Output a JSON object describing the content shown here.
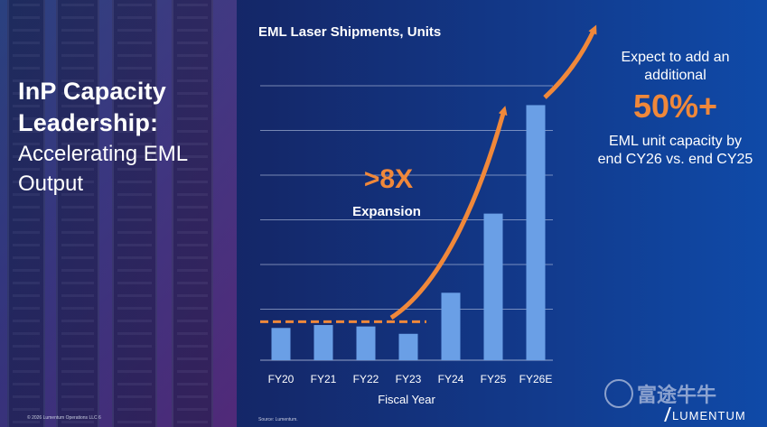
{
  "slide": {
    "title_line1": "InP Capacity",
    "title_line2": "Leadership:",
    "subtitle_line1": "Accelerating EML",
    "subtitle_line2": "Output",
    "footer": "© 2026 Lumentum Operations LLC   6",
    "source": "Source: Lumentum.",
    "brand": "LUMENTUM",
    "watermark": "富途牛牛"
  },
  "callout": {
    "line1": "Expect to add an",
    "line2": "additional",
    "big_value": "50%+",
    "line3": "EML unit capacity by",
    "line4": "end CY26 vs. end CY25"
  },
  "colors": {
    "bar": "#6a9fe6",
    "accent": "#f0883a",
    "grid": "#c9d6ee"
  },
  "chart_data": {
    "type": "bar",
    "title": "EML Laser Shipments, Units",
    "xlabel": "Fiscal Year",
    "ylabel": "",
    "categories": [
      "FY20",
      "FY21",
      "FY22",
      "FY23",
      "FY24",
      "FY25",
      "FY26E"
    ],
    "values": [
      1.1,
      1.2,
      1.15,
      0.9,
      2.3,
      5.0,
      8.7
    ],
    "ylim": [
      0,
      10.5
    ],
    "grid": true,
    "baseline_value": 1.25,
    "annotation_value": ">8X",
    "annotation_label": "Expansion"
  }
}
